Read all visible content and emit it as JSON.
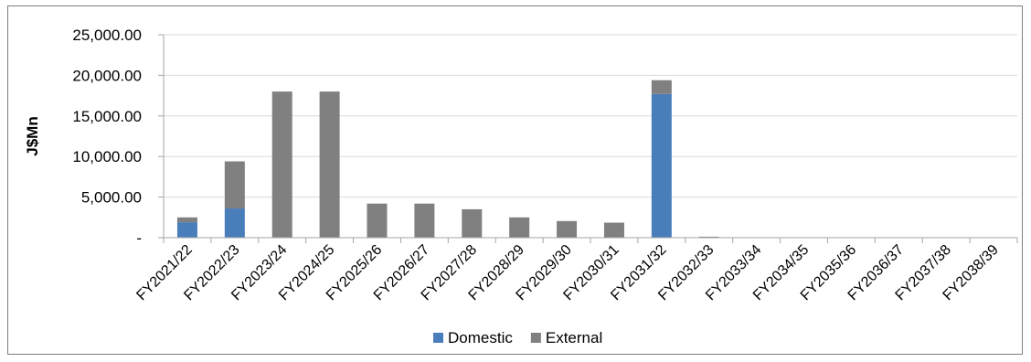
{
  "chart_data": {
    "type": "bar",
    "stacked": true,
    "title": "",
    "xlabel": "",
    "ylabel": "J$Mn",
    "ylim": [
      0,
      25000
    ],
    "y_ticks": [
      0,
      5000,
      10000,
      15000,
      20000,
      25000
    ],
    "y_tick_labels": [
      "-",
      "5,000.00",
      "10,000.00",
      "15,000.00",
      "20,000.00",
      "25,000.00"
    ],
    "grid": true,
    "legend_position": "bottom",
    "categories": [
      "FY2021/22",
      "FY2022/23",
      "FY2023/24",
      "FY2024/25",
      "FY2025/26",
      "FY2026/27",
      "FY2027/28",
      "FY2028/29",
      "FY2029/30",
      "FY2030/31",
      "FY2031/32",
      "FY2032/33",
      "FY2033/34",
      "FY2034/35",
      "FY2035/36",
      "FY2036/37",
      "FY2037/38",
      "FY2038/39"
    ],
    "series": [
      {
        "name": "Domestic",
        "color": "#4a7ebb",
        "values": [
          1900,
          3600,
          0,
          0,
          0,
          0,
          0,
          0,
          0,
          0,
          17700,
          0,
          0,
          0,
          0,
          0,
          0,
          0
        ]
      },
      {
        "name": "External",
        "color": "#808080",
        "values": [
          600,
          5800,
          18000,
          18000,
          4200,
          4200,
          3500,
          2500,
          2050,
          1850,
          1700,
          120,
          50,
          30,
          20,
          20,
          20,
          20
        ]
      }
    ]
  }
}
